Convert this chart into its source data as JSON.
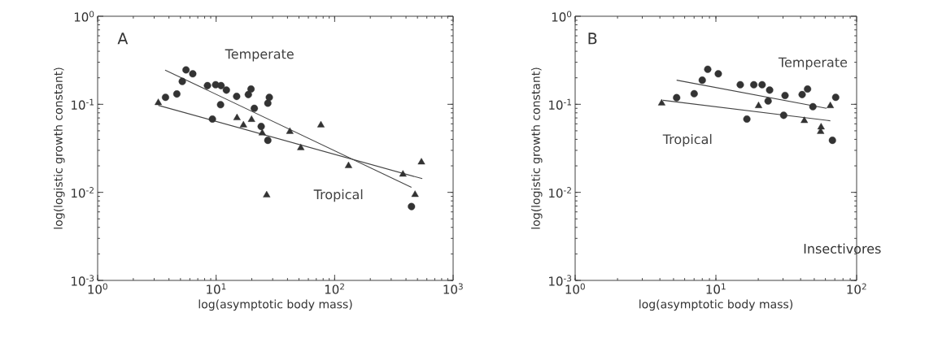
{
  "chart_data": [
    {
      "type": "scatter",
      "log": "xy",
      "xlabel": "log(asymptotic body mass)",
      "ylabel": "log(logistic growth constant)",
      "xlim": [
        1,
        1000
      ],
      "ylim": [
        0.001,
        1
      ],
      "xticks": [
        {
          "value": 1,
          "label": "10$^{0}$"
        },
        {
          "value": 10,
          "label": "10$^{1}$"
        },
        {
          "value": 100,
          "label": "10$^{2}$"
        },
        {
          "value": 1000,
          "label": "10$^{3}$"
        }
      ],
      "yticks": [
        {
          "value": 0.001,
          "label": "10$^{-3}$"
        },
        {
          "value": 0.01,
          "label": "10$^{-2}$"
        },
        {
          "value": 0.1,
          "label": "10$^{-1}$"
        },
        {
          "value": 1,
          "label": "10$^{0}$"
        }
      ],
      "annotations": [
        "A"
      ],
      "series": [
        {
          "name": "Temperate",
          "marker": "circle",
          "color": "#333333",
          "x": [
            3.74,
            4.66,
            5.18,
            5.57,
            6.35,
            8.45,
            9.9,
            11.0,
            12.2,
            10.9,
            14.9,
            18.7,
            19.7,
            21.0,
            27.3,
            28.1,
            9.3,
            24.0,
            27.3,
            445
          ],
          "values": [
            0.12,
            0.131,
            0.182,
            0.246,
            0.222,
            0.163,
            0.167,
            0.163,
            0.145,
            0.099,
            0.123,
            0.129,
            0.149,
            0.09,
            0.103,
            0.12,
            0.068,
            0.056,
            0.039,
            0.0069
          ]
        },
        {
          "name": "Tropical",
          "marker": "triangle",
          "color": "#333333",
          "x": [
            3.25,
            15.0,
            17.0,
            19.9,
            24.5,
            41.9,
            76.6,
            51.8,
            131,
            377,
            540,
            477,
            26.7
          ],
          "values": [
            0.104,
            0.07,
            0.058,
            0.067,
            0.047,
            0.049,
            0.058,
            0.032,
            0.02,
            0.016,
            0.022,
            0.0094,
            0.0093
          ]
        },
        {
          "type": "line",
          "marker": "none",
          "color": "#444444",
          "x": [
            3.71,
            445
          ],
          "values": [
            0.245,
            0.0114
          ]
        },
        {
          "type": "line",
          "marker": "none",
          "color": "#444444",
          "x": [
            3.25,
            549
          ],
          "values": [
            0.0973,
            0.0143
          ]
        }
      ]
    },
    {
      "type": "scatter",
      "log": "xy",
      "xlabel": "log(asymptotic body mass)",
      "ylabel": "log(logistic growth constant)",
      "xlim": [
        1,
        100
      ],
      "ylim": [
        0.001,
        1
      ],
      "xticks": [
        {
          "value": 1,
          "label": "10$^{0}$"
        },
        {
          "value": 10,
          "label": "10$^{1}$"
        },
        {
          "value": 100,
          "label": "10$^{2}$"
        }
      ],
      "yticks": [
        {
          "value": 0.001,
          "label": "10$^{-3}$"
        },
        {
          "value": 0.01,
          "label": "10$^{-2}$"
        },
        {
          "value": 0.1,
          "label": "10$^{-1}$"
        },
        {
          "value": 1,
          "label": "10$^{0}$"
        }
      ],
      "annotations": [
        "B",
        "Insectivores"
      ],
      "series": [
        {
          "name": "Temperate",
          "marker": "circle",
          "color": "#333333",
          "x": [
            5.26,
            7.01,
            8.0,
            8.75,
            10.4,
            14.9,
            18.6,
            21.3,
            24.1,
            23.5,
            16.6,
            31.0,
            30.3,
            41.0,
            44.8,
            48.9,
            71,
            67.3
          ],
          "values": [
            0.119,
            0.132,
            0.188,
            0.25,
            0.222,
            0.167,
            0.167,
            0.167,
            0.145,
            0.109,
            0.068,
            0.126,
            0.075,
            0.129,
            0.149,
            0.094,
            0.12,
            0.039
          ]
        },
        {
          "name": "Tropical",
          "marker": "triangle",
          "color": "#333333",
          "x": [
            4.12,
            20.1,
            42.5,
            55.9,
            55.5,
            65.0
          ],
          "values": [
            0.103,
            0.096,
            0.065,
            0.055,
            0.049,
            0.096
          ]
        },
        {
          "type": "line",
          "marker": "none",
          "color": "#444444",
          "x": [
            5.26,
            61.1
          ],
          "values": [
            0.188,
            0.09
          ]
        },
        {
          "type": "line",
          "marker": "none",
          "color": "#444444",
          "x": [
            4.21,
            65.0
          ],
          "values": [
            0.111,
            0.065
          ]
        }
      ]
    }
  ]
}
